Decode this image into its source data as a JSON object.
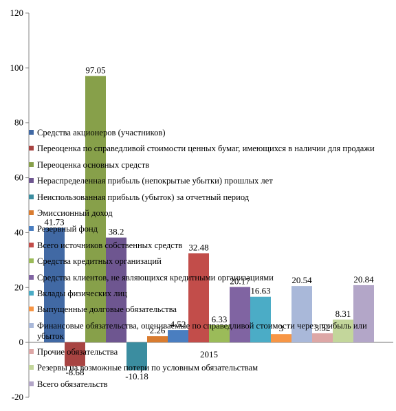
{
  "chart_data": {
    "type": "bar",
    "title": "",
    "xlabel": "",
    "ylabel": "",
    "categories": [
      "2015"
    ],
    "ylim": [
      -20,
      120
    ],
    "yticks": [
      -20,
      0,
      20,
      40,
      60,
      80,
      100,
      120
    ],
    "grid": false,
    "legend_position": "center-overlay",
    "series": [
      {
        "name": "Средства акционеров (участников)",
        "values": [
          41.73
        ],
        "color": "#4169A4"
      },
      {
        "name": "Переоценка по справедливой стоимости ценных бумаг, имеющихся в наличии для продажи",
        "values": [
          -8.68
        ],
        "color": "#A84442"
      },
      {
        "name": "Переоценка основных средств",
        "values": [
          97.05
        ],
        "color": "#87A04A"
      },
      {
        "name": "Нераспределенная прибыль (непокрытые убытки) прошлых лет",
        "values": [
          38.2
        ],
        "color": "#6E5690"
      },
      {
        "name": "Неиспользованная прибыль (убыток) за отчетный период",
        "values": [
          -10.18
        ],
        "color": "#3B8DA0"
      },
      {
        "name": "Эмиссионный доход",
        "values": [
          2.26
        ],
        "color": "#D97C30"
      },
      {
        "name": "Резервный фонд",
        "values": [
          4.52
        ],
        "color": "#4A7EC0"
      },
      {
        "name": "Всего источников собственных средств",
        "values": [
          32.48
        ],
        "color": "#C24D4A"
      },
      {
        "name": "Средства кредитных организаций",
        "values": [
          6.33
        ],
        "color": "#9BBB59"
      },
      {
        "name": "Средства клиентов, не являющихся кредитными организациями",
        "values": [
          20.17
        ],
        "color": "#8064A2"
      },
      {
        "name": "Вклады физических лиц",
        "values": [
          16.63
        ],
        "color": "#4BACC6"
      },
      {
        "name": "Выпущенные долговые обязательства",
        "values": [
          3
        ],
        "color": "#F79646"
      },
      {
        "name": "Финансовые обязательства, оцениваемые по справедливой стоимости через прибыль или убыток",
        "values": [
          20.54
        ],
        "color": "#A9B8D9"
      },
      {
        "name": "Прочие обязательства",
        "values": [
          3.32
        ],
        "color": "#DDA7A6"
      },
      {
        "name": "Резервы на возможные потери по условным обязательствам",
        "values": [
          8.31
        ],
        "color": "#C3D69B"
      },
      {
        "name": "Всего обязательств",
        "values": [
          20.84
        ],
        "color": "#B3A6C8"
      }
    ],
    "data_labels": [
      "41.73",
      "-8.68",
      "97.05",
      "38.2",
      "-10.18",
      "2.26",
      "4.52",
      "32.48",
      "6.33",
      "20.17",
      "16.63",
      "3",
      "20.54",
      "3.32",
      "8.31",
      "20.84"
    ]
  }
}
